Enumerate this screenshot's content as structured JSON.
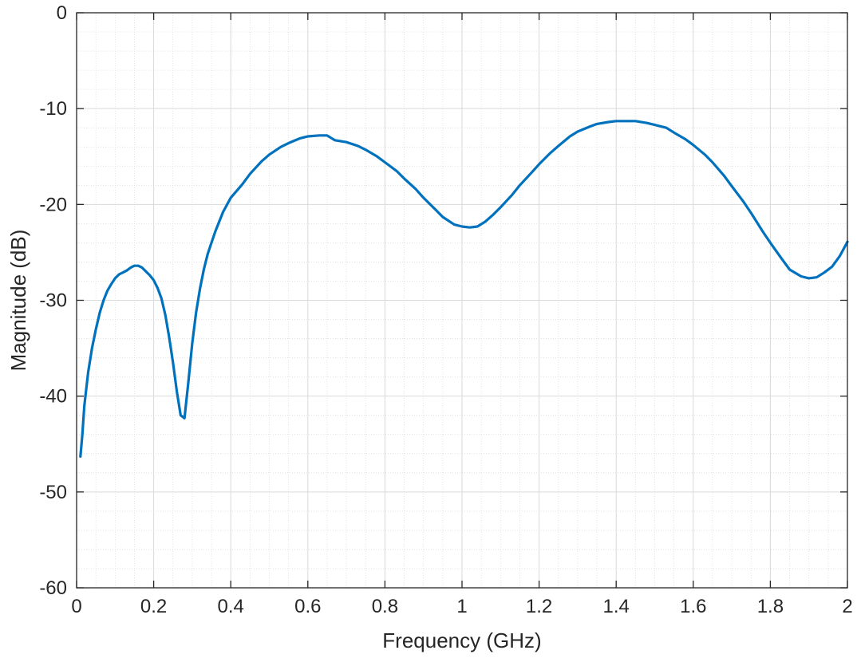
{
  "chart_data": {
    "type": "line",
    "title": "",
    "xlabel": "Frequency (GHz)",
    "ylabel": "Magnitude (dB)",
    "xlim": [
      0,
      2
    ],
    "ylim": [
      -60,
      0
    ],
    "xticks": [
      "0",
      "0.2",
      "0.4",
      "0.6",
      "0.8",
      "1",
      "1.2",
      "1.4",
      "1.6",
      "1.8",
      "2"
    ],
    "yticks": [
      "0",
      "-10",
      "-20",
      "-30",
      "-40",
      "-50",
      "-60"
    ],
    "grid": true,
    "minor_grid": true,
    "series": [
      {
        "color": "#0072BD",
        "x": [
          0.01,
          0.015,
          0.02,
          0.03,
          0.04,
          0.05,
          0.06,
          0.07,
          0.08,
          0.09,
          0.1,
          0.11,
          0.12,
          0.13,
          0.14,
          0.15,
          0.16,
          0.17,
          0.18,
          0.19,
          0.2,
          0.21,
          0.22,
          0.23,
          0.24,
          0.25,
          0.26,
          0.27,
          0.28,
          0.29,
          0.3,
          0.31,
          0.32,
          0.33,
          0.34,
          0.35,
          0.36,
          0.38,
          0.4,
          0.43,
          0.45,
          0.48,
          0.5,
          0.53,
          0.55,
          0.58,
          0.6,
          0.63,
          0.65,
          0.67,
          0.7,
          0.73,
          0.75,
          0.78,
          0.8,
          0.83,
          0.85,
          0.88,
          0.9,
          0.93,
          0.95,
          0.98,
          1.0,
          1.02,
          1.04,
          1.06,
          1.08,
          1.1,
          1.13,
          1.15,
          1.18,
          1.2,
          1.23,
          1.25,
          1.28,
          1.3,
          1.33,
          1.35,
          1.38,
          1.4,
          1.43,
          1.45,
          1.48,
          1.5,
          1.53,
          1.55,
          1.58,
          1.6,
          1.63,
          1.65,
          1.68,
          1.7,
          1.73,
          1.75,
          1.78,
          1.8,
          1.83,
          1.85,
          1.88,
          1.9,
          1.92,
          1.94,
          1.96,
          1.98,
          2.0
        ],
        "y": [
          -46.3,
          -44.0,
          -41.0,
          -37.5,
          -35.0,
          -33.0,
          -31.3,
          -30.0,
          -29.0,
          -28.3,
          -27.7,
          -27.3,
          -27.1,
          -26.9,
          -26.6,
          -26.4,
          -26.4,
          -26.6,
          -27.0,
          -27.4,
          -27.9,
          -28.7,
          -29.8,
          -31.5,
          -33.8,
          -36.5,
          -39.5,
          -42.0,
          -42.3,
          -38.5,
          -34.5,
          -31.3,
          -28.8,
          -26.8,
          -25.2,
          -24.0,
          -22.8,
          -20.8,
          -19.3,
          -17.9,
          -16.8,
          -15.5,
          -14.8,
          -14.0,
          -13.6,
          -13.1,
          -12.9,
          -12.8,
          -12.8,
          -13.3,
          -13.5,
          -13.9,
          -14.3,
          -15.0,
          -15.6,
          -16.5,
          -17.3,
          -18.4,
          -19.3,
          -20.5,
          -21.3,
          -22.1,
          -22.3,
          -22.4,
          -22.3,
          -21.8,
          -21.1,
          -20.3,
          -19.0,
          -18.0,
          -16.7,
          -15.8,
          -14.6,
          -13.9,
          -12.9,
          -12.4,
          -11.9,
          -11.6,
          -11.4,
          -11.3,
          -11.3,
          -11.3,
          -11.5,
          -11.7,
          -12.0,
          -12.5,
          -13.2,
          -13.8,
          -14.8,
          -15.6,
          -17.0,
          -18.1,
          -19.7,
          -20.9,
          -22.8,
          -24.0,
          -25.7,
          -26.8,
          -27.5,
          -27.7,
          -27.6,
          -27.1,
          -26.5,
          -25.4,
          -23.9
        ]
      }
    ]
  }
}
